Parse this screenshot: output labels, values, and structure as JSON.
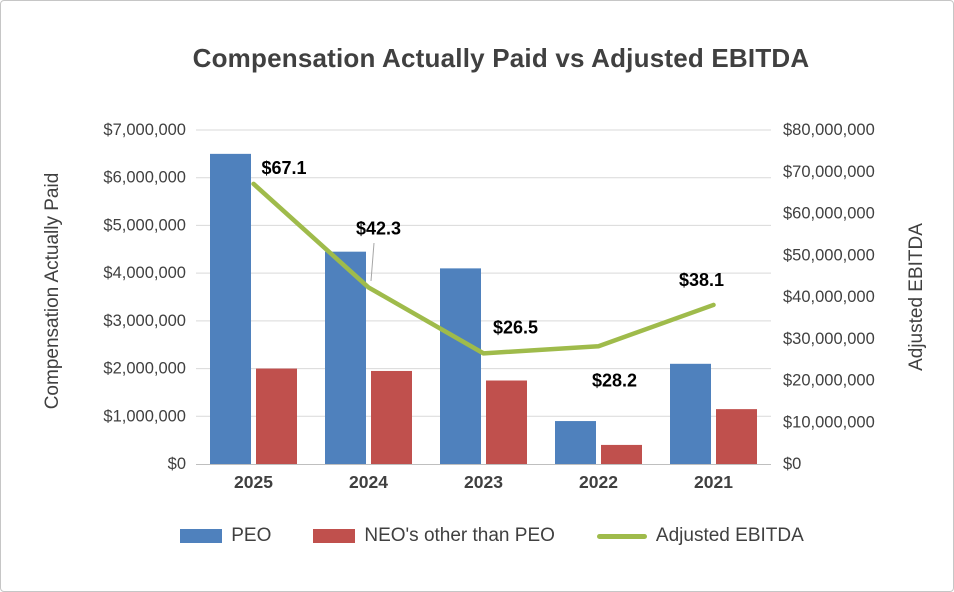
{
  "chart_data": {
    "type": "bar",
    "subtype": "combo-bar-line-dual-axis",
    "title": "Compensation Actually Paid vs Adjusted EBITDA",
    "categories": [
      "2025",
      "2024",
      "2023",
      "2022",
      "2021"
    ],
    "bar_series": [
      {
        "name": "PEO",
        "color": "#4F81BD",
        "axis": "left",
        "values": [
          6500000,
          4450000,
          4100000,
          900000,
          2100000
        ]
      },
      {
        "name": "NEO's other than PEO",
        "color": "#C0504D",
        "axis": "left",
        "values": [
          2000000,
          1950000,
          1750000,
          400000,
          1150000
        ]
      }
    ],
    "line_series": {
      "name": "Adjusted EBITDA",
      "color": "#9FBB4B",
      "axis": "right",
      "values": [
        67100000,
        42300000,
        26500000,
        28200000,
        38100000
      ],
      "data_labels": [
        "$67.1",
        "$42.3",
        "$26.5",
        "$28.2",
        "$38.1"
      ]
    },
    "left_axis": {
      "title": "Compensation Actually Paid",
      "min": 0,
      "max": 7000000,
      "step": 1000000,
      "tick_labels": [
        "$0",
        "$1,000,000",
        "$2,000,000",
        "$3,000,000",
        "$4,000,000",
        "$5,000,000",
        "$6,000,000",
        "$7,000,000"
      ]
    },
    "right_axis": {
      "title": "Adjusted EBITDA",
      "min": 0,
      "max": 80000000,
      "step": 10000000,
      "tick_labels": [
        "$0",
        "$10,000,000",
        "$20,000,000",
        "$30,000,000",
        "$40,000,000",
        "$50,000,000",
        "$60,000,000",
        "$70,000,000",
        "$80,000,000"
      ]
    },
    "legend": [
      "PEO",
      "NEO's other than PEO",
      "Adjusted EBITDA"
    ],
    "grid": "horizontal",
    "legend_position": "bottom"
  },
  "style": {
    "grid_color": "#D9D9D9",
    "axis_line_color": "#BFBFBF",
    "tick_color": "#404040",
    "data_label_color": "#000000",
    "leader_line_color": "#A6A6A6"
  }
}
